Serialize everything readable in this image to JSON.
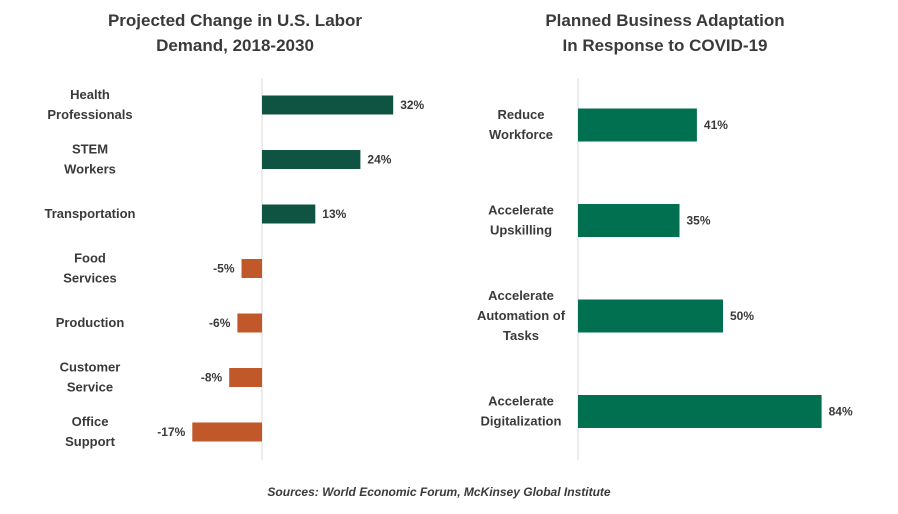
{
  "chart_data": [
    {
      "type": "bar",
      "orientation": "horizontal",
      "title": [
        "Projected Change in U.S. Labor",
        "Demand, 2018-2030"
      ],
      "categories": [
        [
          "Health",
          "Professionals"
        ],
        [
          "STEM",
          "Workers"
        ],
        [
          "Transportation"
        ],
        [
          "Food",
          "Services"
        ],
        [
          "Production"
        ],
        [
          "Customer",
          "Service"
        ],
        [
          "Office",
          "Support"
        ]
      ],
      "values": [
        32,
        24,
        13,
        -5,
        -6,
        -8,
        -17
      ],
      "value_labels": [
        "32%",
        "24%",
        "13%",
        "-5%",
        "-6%",
        "-8%",
        "-17%"
      ],
      "unit": "%",
      "xlim": [
        -17,
        32
      ],
      "grid": false,
      "colors": {
        "positive": "#0f5443",
        "negative": "#c0582a"
      }
    },
    {
      "type": "bar",
      "orientation": "horizontal",
      "title": [
        "Planned Business Adaptation",
        "In Response to COVID-19"
      ],
      "categories": [
        [
          "Reduce",
          "Workforce"
        ],
        [
          "Accelerate",
          "Upskilling"
        ],
        [
          "Accelerate",
          "Automation of",
          "Tasks"
        ],
        [
          "Accelerate",
          "Digitalization"
        ]
      ],
      "values": [
        41,
        35,
        50,
        84
      ],
      "value_labels": [
        "41%",
        "35%",
        "50%",
        "84%"
      ],
      "unit": "%",
      "xlim": [
        0,
        84
      ],
      "grid": false,
      "colors": {
        "bar": "#007050"
      }
    }
  ],
  "source": "Sources: World Economic Forum, McKinsey Global Institute",
  "colors": {
    "axis": "#d9d9d9",
    "text": "#3a3a3a"
  }
}
